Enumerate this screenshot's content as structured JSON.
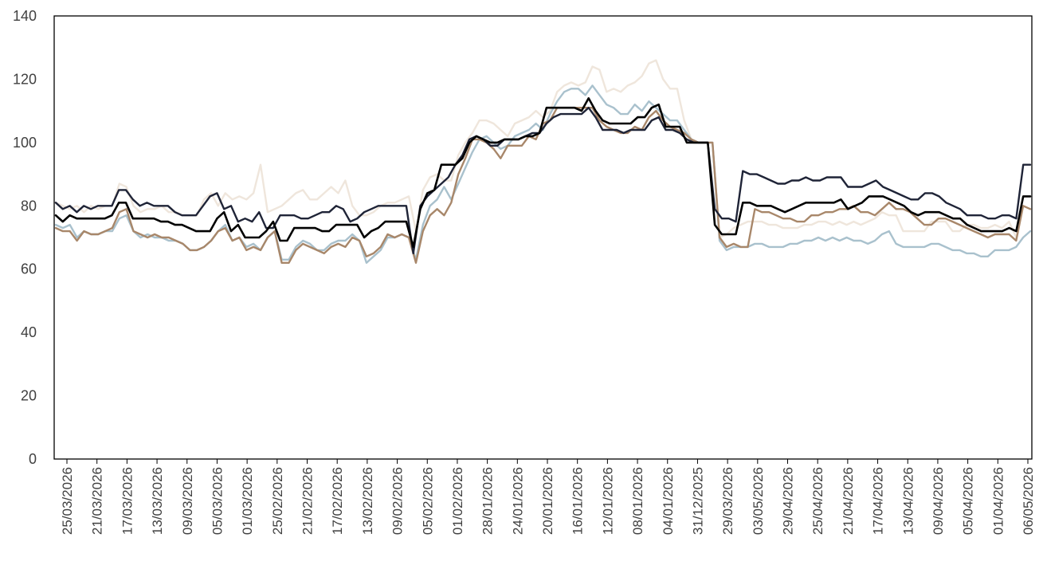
{
  "chart_data": {
    "type": "line",
    "title": "",
    "xlabel": "",
    "ylabel": "",
    "ylim": [
      0,
      140
    ],
    "yticks": [
      0,
      20,
      40,
      60,
      80,
      100,
      120,
      140
    ],
    "grid": false,
    "legend": "none",
    "x_tick_labels": [
      "25/03/2026",
      "21/03/2026",
      "17/03/2026",
      "13/03/2026",
      "09/03/2026",
      "05/03/2026",
      "01/03/2026",
      "25/02/2026",
      "21/02/2026",
      "17/02/2026",
      "13/02/2026",
      "09/02/2026",
      "05/02/2026",
      "01/02/2026",
      "28/01/2026",
      "24/01/2026",
      "20/01/2026",
      "16/01/2026",
      "12/01/2026",
      "08/01/2026",
      "04/01/2026",
      "31/12/2025",
      "29/03/2026",
      "03/05/2026",
      "29/04/2026",
      "25/04/2026",
      "21/04/2026",
      "17/04/2026",
      "13/04/2026",
      "09/04/2026",
      "05/04/2026",
      "01/04/2026",
      "06/05/2026"
    ],
    "series": [
      {
        "color": "#efe6dc",
        "values": [
          81,
          80,
          79,
          80,
          78,
          80,
          79,
          80,
          80,
          87,
          86,
          80,
          78,
          79,
          79,
          80,
          78,
          78,
          77,
          77,
          77,
          82,
          84,
          80,
          84,
          82,
          83,
          82,
          84,
          93,
          78,
          79,
          80,
          82,
          84,
          85,
          82,
          82,
          84,
          86,
          84,
          88,
          80,
          77,
          77,
          78,
          80,
          81,
          81,
          82,
          83,
          72,
          85,
          89,
          90,
          88,
          88,
          96,
          100,
          103,
          107,
          107,
          106,
          104,
          102,
          106,
          107,
          108,
          110,
          108,
          110,
          116,
          118,
          119,
          118,
          119,
          124,
          123,
          116,
          117,
          116,
          118,
          119,
          121,
          125,
          126,
          120,
          117,
          117,
          107,
          101,
          100,
          100,
          100,
          70,
          71,
          73,
          74,
          75,
          75,
          75,
          74,
          74,
          73,
          73,
          73,
          74,
          74,
          75,
          75,
          74,
          75,
          74,
          75,
          74,
          75,
          76,
          78,
          77,
          77,
          72,
          72,
          72,
          72,
          75,
          75,
          75,
          72,
          72,
          74,
          74,
          73,
          73,
          74,
          73,
          75,
          70,
          80,
          79
        ]
      },
      {
        "color": "#a9c1cd",
        "values": [
          74,
          73,
          74,
          70,
          72,
          71,
          71,
          72,
          72,
          76,
          77,
          72,
          70,
          71,
          70,
          70,
          69,
          69,
          68,
          66,
          66,
          67,
          69,
          72,
          74,
          69,
          70,
          67,
          68,
          66,
          70,
          72,
          63,
          63,
          67,
          69,
          68,
          66,
          66,
          68,
          69,
          69,
          71,
          69,
          62,
          64,
          66,
          70,
          70,
          71,
          70,
          63,
          74,
          80,
          82,
          86,
          82,
          87,
          92,
          97,
          101,
          102,
          100,
          98,
          99,
          102,
          103,
          104,
          106,
          104,
          109,
          113,
          116,
          117,
          117,
          115,
          118,
          115,
          112,
          111,
          109,
          109,
          112,
          110,
          113,
          111,
          109,
          107,
          107,
          104,
          101,
          100,
          100,
          100,
          69,
          66,
          67,
          67,
          67,
          68,
          68,
          67,
          67,
          67,
          68,
          68,
          69,
          69,
          70,
          69,
          70,
          69,
          70,
          69,
          69,
          68,
          69,
          71,
          72,
          68,
          67,
          67,
          67,
          67,
          68,
          68,
          67,
          66,
          66,
          65,
          65,
          64,
          64,
          66,
          66,
          66,
          67,
          70,
          72
        ]
      },
      {
        "color": "#a8876a",
        "values": [
          73,
          72,
          72,
          69,
          72,
          71,
          71,
          72,
          73,
          78,
          79,
          72,
          71,
          70,
          71,
          70,
          70,
          69,
          68,
          66,
          66,
          67,
          69,
          72,
          73,
          69,
          70,
          66,
          67,
          66,
          70,
          72,
          62,
          62,
          66,
          68,
          67,
          66,
          65,
          67,
          68,
          67,
          70,
          69,
          64,
          65,
          67,
          71,
          70,
          71,
          70,
          62,
          72,
          77,
          79,
          77,
          81,
          90,
          95,
          101,
          101,
          100,
          98,
          95,
          99,
          99,
          99,
          102,
          101,
          106,
          107,
          111,
          111,
          111,
          111,
          111,
          111,
          107,
          105,
          104,
          103,
          103,
          105,
          104,
          108,
          110,
          107,
          105,
          104,
          103,
          101,
          100,
          100,
          100,
          70,
          67,
          68,
          67,
          67,
          79,
          78,
          78,
          77,
          76,
          76,
          75,
          75,
          77,
          77,
          78,
          78,
          79,
          79,
          80,
          78,
          78,
          77,
          79,
          81,
          79,
          79,
          78,
          76,
          74,
          74,
          76,
          76,
          75,
          74,
          73,
          72,
          71,
          70,
          71,
          71,
          71,
          69,
          80,
          79
        ]
      },
      {
        "color": "#1f2437",
        "values": [
          81,
          79,
          80,
          78,
          80,
          79,
          80,
          80,
          80,
          85,
          85,
          82,
          80,
          81,
          80,
          80,
          80,
          78,
          77,
          77,
          77,
          80,
          83,
          84,
          79,
          80,
          75,
          76,
          75,
          78,
          73,
          73,
          77,
          77,
          77,
          76,
          76,
          77,
          78,
          78,
          80,
          79,
          75,
          76,
          78,
          79,
          80,
          80,
          80,
          80,
          80,
          65,
          80,
          83,
          85,
          87,
          89,
          93,
          96,
          101,
          102,
          101,
          99,
          99,
          101,
          101,
          101,
          102,
          103,
          103,
          106,
          108,
          109,
          109,
          109,
          109,
          111,
          108,
          104,
          104,
          104,
          103,
          104,
          104,
          104,
          107,
          108,
          104,
          104,
          103,
          101,
          100,
          100,
          100,
          79,
          76,
          76,
          75,
          91,
          90,
          90,
          89,
          88,
          87,
          87,
          88,
          88,
          89,
          88,
          88,
          89,
          89,
          89,
          86,
          86,
          86,
          87,
          88,
          86,
          85,
          84,
          83,
          82,
          82,
          84,
          84,
          83,
          81,
          80,
          79,
          77,
          77,
          77,
          76,
          76,
          77,
          77,
          76,
          93,
          93
        ]
      },
      {
        "color": "#000000",
        "values": [
          77,
          75,
          77,
          76,
          76,
          76,
          76,
          76,
          77,
          81,
          81,
          76,
          76,
          76,
          76,
          75,
          75,
          74,
          74,
          73,
          72,
          72,
          72,
          76,
          78,
          72,
          74,
          70,
          70,
          70,
          72,
          75,
          69,
          69,
          73,
          73,
          73,
          73,
          72,
          72,
          74,
          74,
          74,
          74,
          70,
          72,
          73,
          75,
          75,
          75,
          75,
          67,
          79,
          84,
          85,
          93,
          93,
          93,
          95,
          100,
          102,
          101,
          100,
          100,
          101,
          101,
          101,
          102,
          102,
          103,
          111,
          111,
          111,
          111,
          111,
          110,
          114,
          110,
          107,
          106,
          106,
          106,
          106,
          108,
          108,
          111,
          112,
          105,
          105,
          105,
          100,
          100,
          100,
          100,
          74,
          71,
          71,
          71,
          81,
          81,
          80,
          80,
          80,
          79,
          78,
          79,
          80,
          81,
          81,
          81,
          81,
          81,
          82,
          79,
          80,
          81,
          83,
          83,
          83,
          82,
          81,
          80,
          78,
          77,
          78,
          78,
          78,
          77,
          76,
          76,
          74,
          73,
          72,
          72,
          72,
          72,
          73,
          72,
          83,
          83
        ]
      }
    ]
  }
}
